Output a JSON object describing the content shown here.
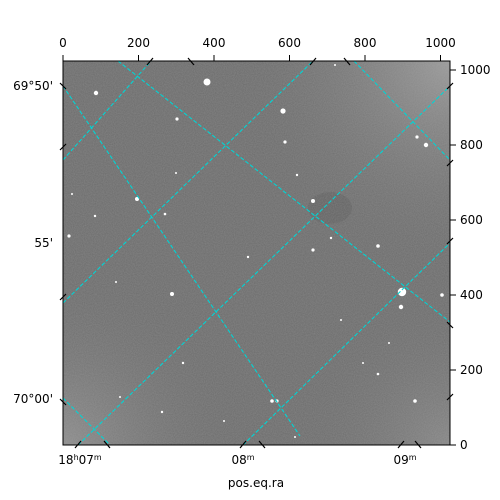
{
  "figure": {
    "x_axis_title": "pos.eq.ra",
    "top_ticks": [
      "0",
      "200",
      "400",
      "600",
      "800",
      "1000"
    ],
    "right_ticks": [
      "0",
      "200",
      "400",
      "600",
      "800",
      "1000"
    ],
    "left_ticks": [
      "69°50'",
      "55'",
      "70°00'"
    ],
    "ra_label_first": {
      "main": "18",
      "h": "h",
      "min": "07",
      "m": "m"
    },
    "ra_label_second": {
      "main": "08",
      "m": "m"
    },
    "ra_label_third": {
      "main": "09",
      "m": "m"
    },
    "colors": {
      "background_image": "#6b6b6b",
      "grid": "#00d5d5",
      "frame": "#000000"
    }
  }
}
